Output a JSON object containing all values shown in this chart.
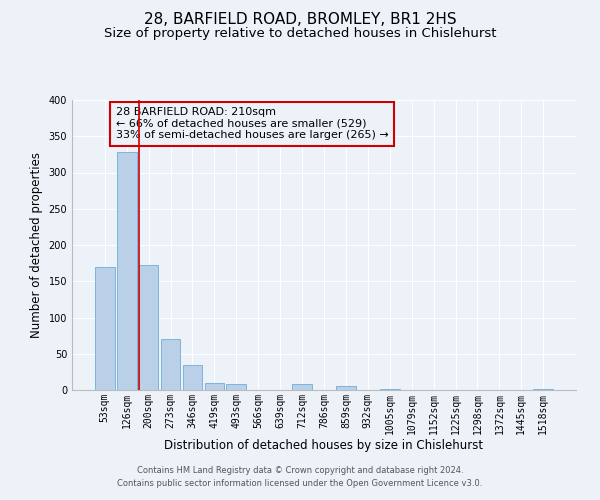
{
  "title": "28, BARFIELD ROAD, BROMLEY, BR1 2HS",
  "subtitle": "Size of property relative to detached houses in Chislehurst",
  "xlabel": "Distribution of detached houses by size in Chislehurst",
  "ylabel": "Number of detached properties",
  "bar_labels": [
    "53sqm",
    "126sqm",
    "200sqm",
    "273sqm",
    "346sqm",
    "419sqm",
    "493sqm",
    "566sqm",
    "639sqm",
    "712sqm",
    "786sqm",
    "859sqm",
    "932sqm",
    "1005sqm",
    "1079sqm",
    "1152sqm",
    "1225sqm",
    "1298sqm",
    "1372sqm",
    "1445sqm",
    "1518sqm"
  ],
  "bar_values": [
    170,
    328,
    172,
    70,
    34,
    10,
    8,
    0,
    0,
    8,
    0,
    5,
    0,
    2,
    0,
    0,
    0,
    0,
    0,
    0,
    2
  ],
  "bar_color": "#bad0e8",
  "bar_edge_color": "#6baed6",
  "ylim": [
    0,
    400
  ],
  "yticks": [
    0,
    50,
    100,
    150,
    200,
    250,
    300,
    350,
    400
  ],
  "property_line_color": "#cc0000",
  "annotation_title": "28 BARFIELD ROAD: 210sqm",
  "annotation_line1": "← 66% of detached houses are smaller (529)",
  "annotation_line2": "33% of semi-detached houses are larger (265) →",
  "annotation_box_color": "#cc0000",
  "footer_line1": "Contains HM Land Registry data © Crown copyright and database right 2024.",
  "footer_line2": "Contains public sector information licensed under the Open Government Licence v3.0.",
  "background_color": "#edf2f9",
  "grid_color": "#ffffff",
  "title_fontsize": 11,
  "subtitle_fontsize": 9.5,
  "axis_label_fontsize": 8.5,
  "tick_fontsize": 7,
  "footer_fontsize": 6,
  "annotation_fontsize": 8
}
